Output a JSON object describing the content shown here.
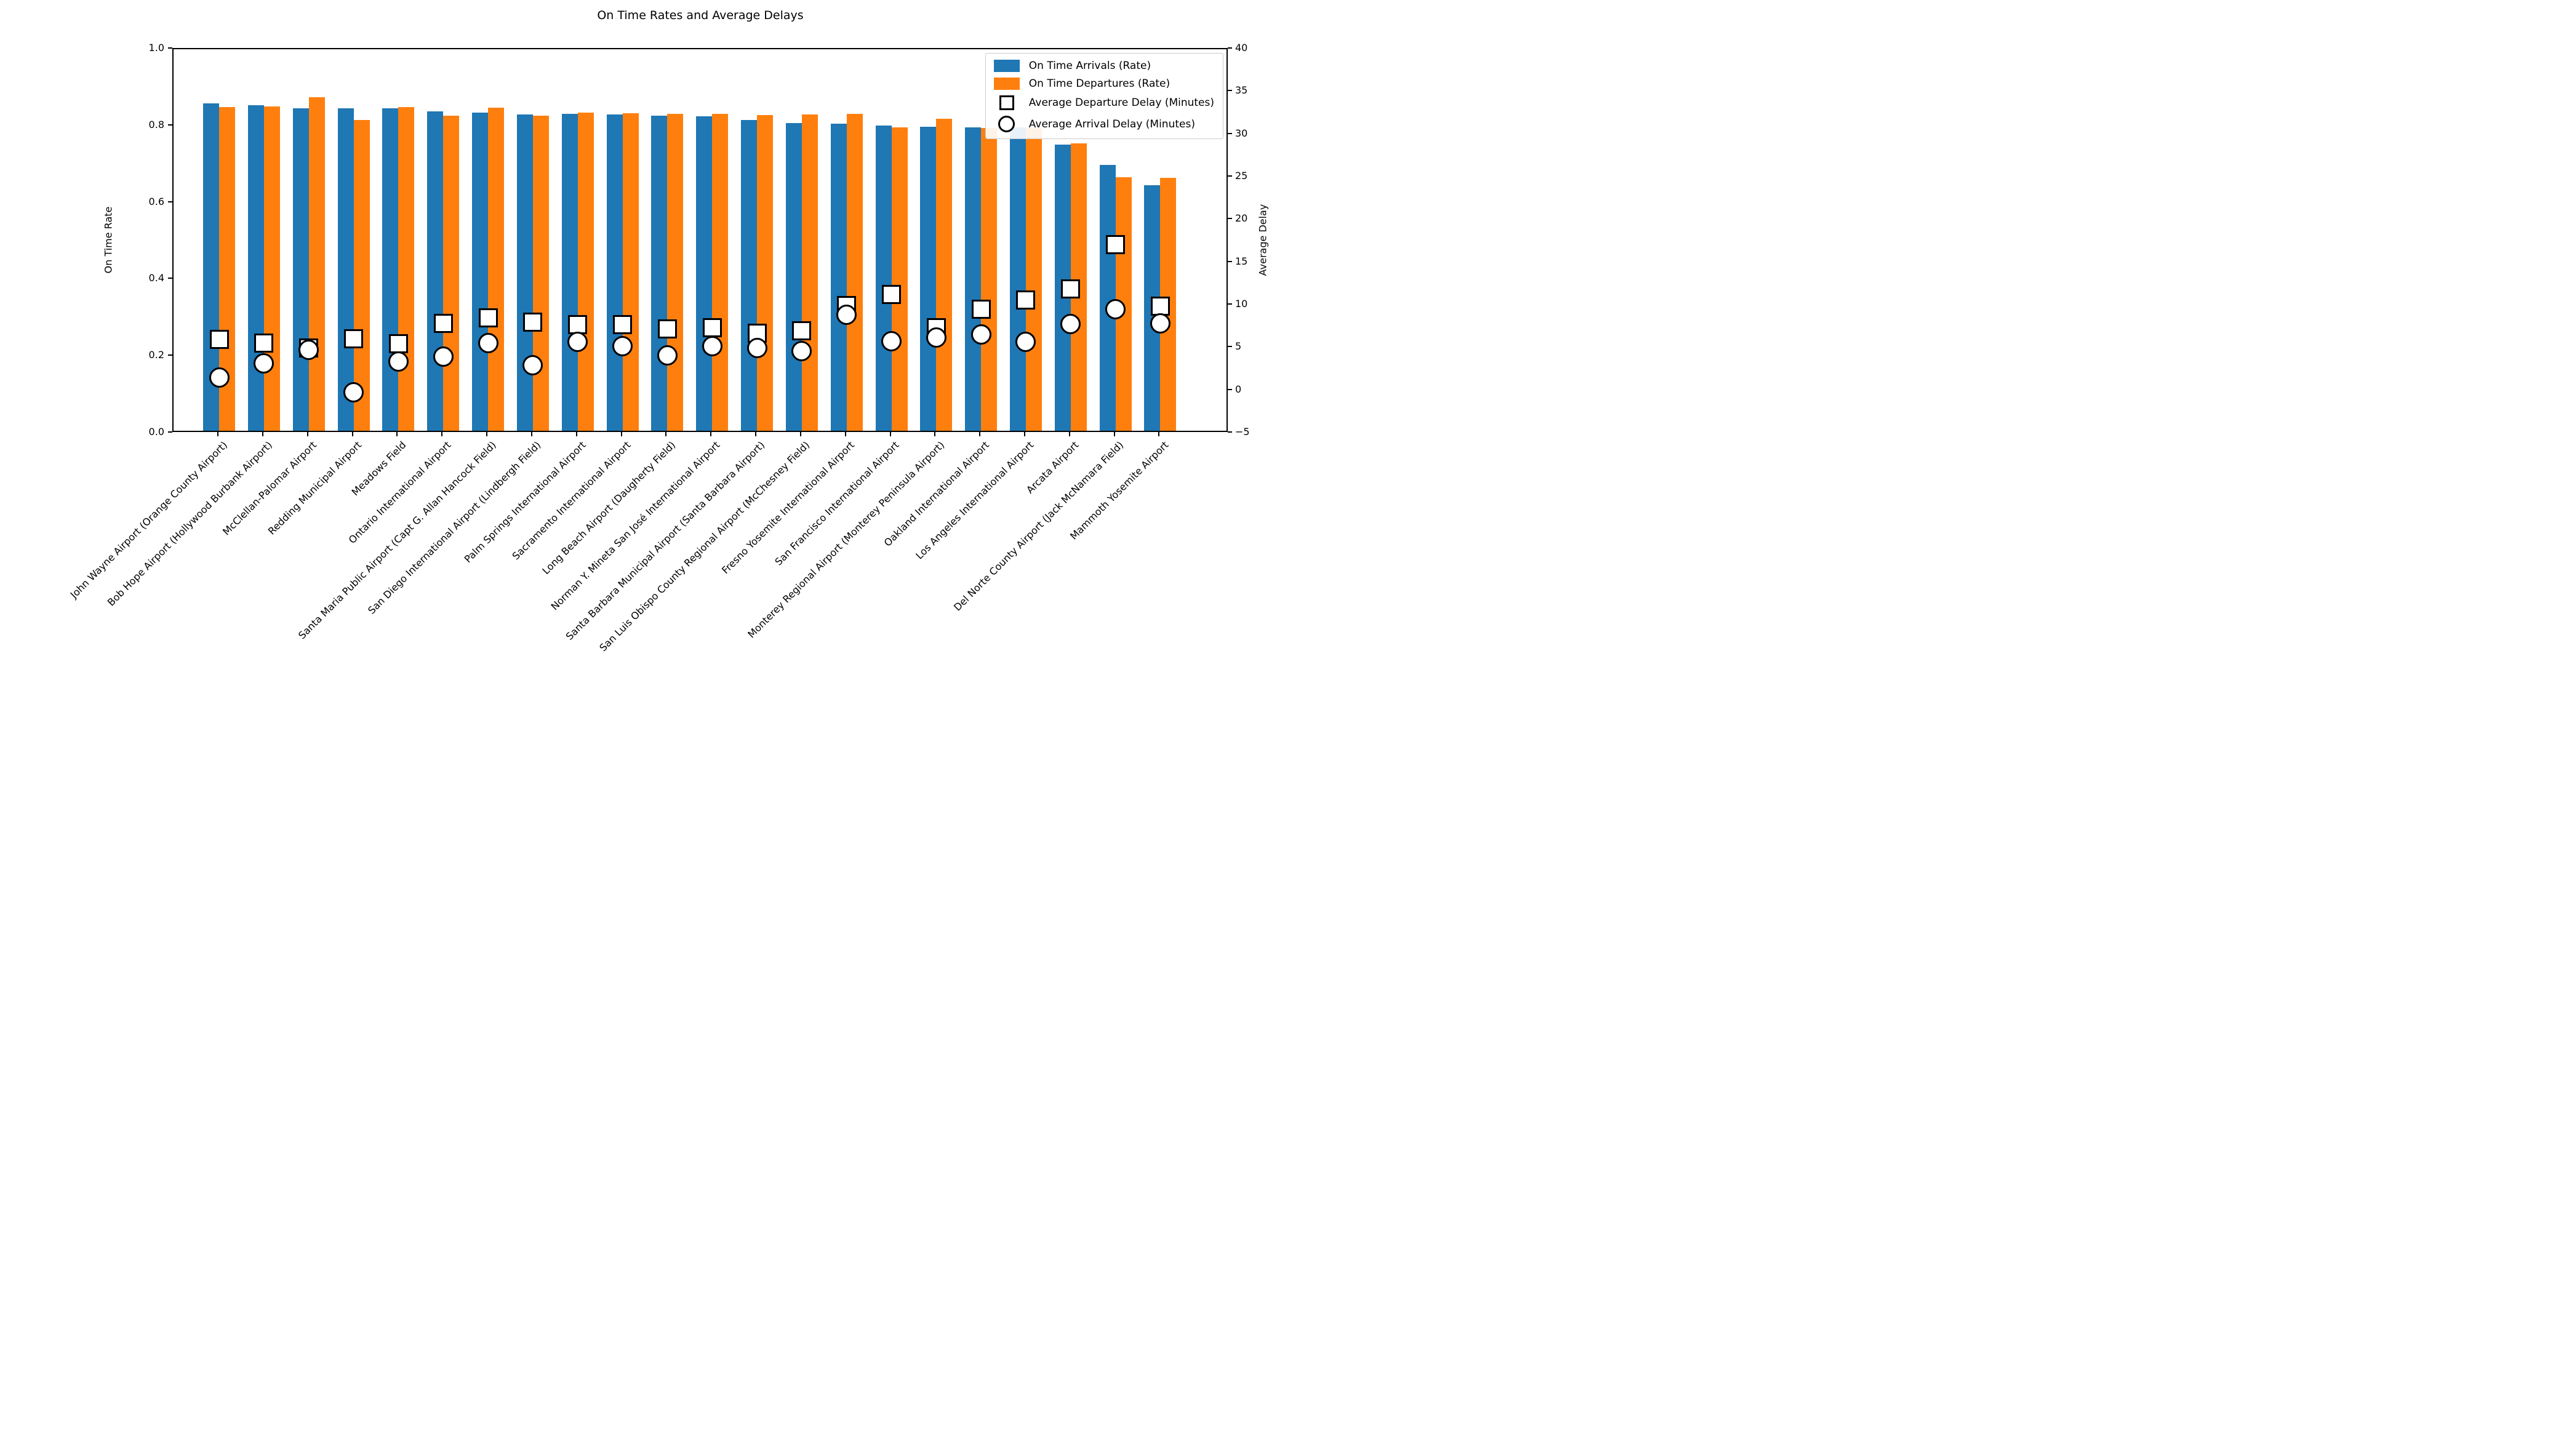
{
  "title": "On Time Rates and Average Delays",
  "colors": {
    "arrivals_bar": "#1f77b4",
    "departures_bar": "#ff7f0e",
    "marker_fill": "#ffffff",
    "marker_edge": "#000000",
    "spine": "#000000",
    "legend_border": "#cccccc"
  },
  "chart_data": {
    "type": "bar",
    "title": "On Time Rates and Average Delays",
    "grid": false,
    "legend_position": "upper right",
    "x_tick_rotation": 45,
    "categories": [
      "John Wayne Airport (Orange County Airport)",
      "Bob Hope Airport (Hollywood Burbank Airport)",
      "McClellan-Palomar Airport",
      "Redding Municipal Airport",
      "Meadows Field",
      "Ontario International Airport",
      "Santa Maria Public Airport (Capt G. Allan Hancock Field)",
      "San Diego International Airport (Lindbergh Field)",
      "Palm Springs International Airport",
      "Sacramento International Airport",
      "Long Beach Airport (Daugherty Field)",
      "Norman Y. Mineta San José International Airport",
      "Santa Barbara Municipal Airport (Santa Barbara Airport)",
      "San Luis Obispo County Regional Airport (McChesney Field)",
      "Fresno Yosemite International Airport",
      "San Francisco International Airport",
      "Monterey Regional Airport (Monterey Peninsula Airport)",
      "Oakland International Airport",
      "Los Angeles International Airport",
      "Arcata Airport",
      "Del Norte County Airport (Jack McNamara Field)",
      "Mammoth Yosemite Airport"
    ],
    "series": [
      {
        "name": "On Time Arrivals (Rate)",
        "type": "bar",
        "axis": "left",
        "color": "#1f77b4",
        "values": [
          0.853,
          0.847,
          0.84,
          0.839,
          0.84,
          0.831,
          0.828,
          0.823,
          0.825,
          0.823,
          0.821,
          0.819,
          0.81,
          0.802,
          0.8,
          0.795,
          0.792,
          0.79,
          0.79,
          0.746,
          0.692,
          0.64
        ]
      },
      {
        "name": "On Time Departures (Rate)",
        "type": "bar",
        "axis": "left",
        "color": "#ff7f0e",
        "values": [
          0.843,
          0.845,
          0.868,
          0.81,
          0.843,
          0.821,
          0.842,
          0.82,
          0.828,
          0.827,
          0.826,
          0.825,
          0.822,
          0.824,
          0.825,
          0.79,
          0.812,
          0.788,
          0.789,
          0.749,
          0.66,
          0.659
        ]
      },
      {
        "name": "Average Departure Delay (Minutes)",
        "type": "scatter",
        "axis": "right",
        "marker": "square",
        "values": [
          6.0,
          5.6,
          5.0,
          6.1,
          5.5,
          7.9,
          8.5,
          8.0,
          7.7,
          7.7,
          7.2,
          7.4,
          6.7,
          7.0,
          10.0,
          11.3,
          7.4,
          9.5,
          10.6,
          11.9,
          17.1,
          9.9
        ]
      },
      {
        "name": "Average Arrival Delay (Minutes)",
        "type": "scatter",
        "axis": "right",
        "marker": "circle",
        "values": [
          1.5,
          3.2,
          4.8,
          -0.2,
          3.4,
          4.0,
          5.6,
          3.0,
          5.7,
          5.2,
          4.1,
          5.2,
          5.0,
          4.6,
          8.9,
          5.8,
          6.2,
          6.6,
          5.7,
          7.8,
          9.5,
          7.9
        ]
      }
    ],
    "axis_left": {
      "label": "On Time Rate",
      "min": 0,
      "max": 1,
      "ticks": [
        0,
        0.2,
        0.4,
        0.6,
        0.8,
        1.0
      ],
      "tick_labels": [
        "0.0",
        "0.2",
        "0.4",
        "0.6",
        "0.8",
        "1.0"
      ]
    },
    "axis_right": {
      "label": "Average Delay",
      "min": -5,
      "max": 40,
      "ticks": [
        -5,
        0,
        5,
        10,
        15,
        20,
        25,
        30,
        35,
        40
      ],
      "tick_labels": [
        "−5",
        "0",
        "5",
        "10",
        "15",
        "20",
        "25",
        "30",
        "35",
        "40"
      ]
    }
  }
}
